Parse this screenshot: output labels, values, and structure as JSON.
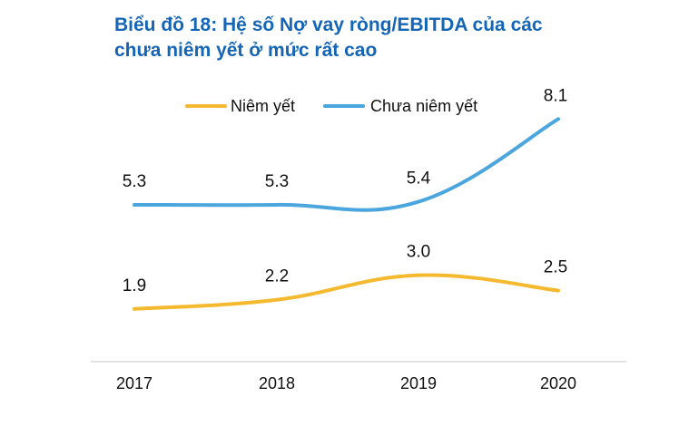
{
  "title": {
    "line1": "Biểu đồ 18: Hệ số Nợ vay ròng/EBITDA của các",
    "line2": "chưa niêm yết ở mức rất cao"
  },
  "colors": {
    "title": "#1565b7",
    "series_listed": "#f4b92f",
    "series_unlisted": "#4aa6dd",
    "axis": "#d9d9d9",
    "text": "#111111"
  },
  "chart_data": {
    "type": "line",
    "title": "Biểu đồ 18: Hệ số Nợ vay ròng/EBITDA của các chưa niêm yết ở mức rất cao",
    "xlabel": "",
    "ylabel": "",
    "categories": [
      "2017",
      "2018",
      "2019",
      "2020"
    ],
    "series": [
      {
        "name": "Niêm yết",
        "values": [
          1.9,
          2.2,
          3.0,
          2.5
        ],
        "color": "#f4b92f"
      },
      {
        "name": "Chưa niêm yết",
        "values": [
          5.3,
          5.3,
          5.4,
          8.1
        ],
        "color": "#4aa6dd"
      }
    ],
    "data_labels": true,
    "smooth": true,
    "grid": false,
    "legend_position": "top",
    "ylim": [
      0,
      9
    ]
  }
}
